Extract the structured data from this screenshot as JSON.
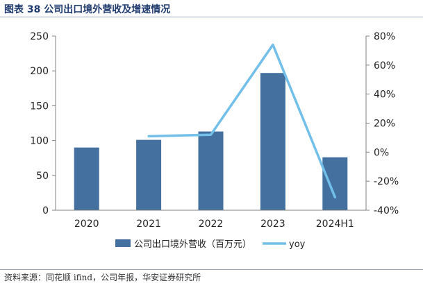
{
  "figure": {
    "title": "图表 38 公司出口境外营收及增速情况",
    "source": "资料来源：同花顺 ifind，公司年报，华安证券研究所"
  },
  "colors": {
    "bar": "#43709f",
    "line": "#72bfea",
    "axis": "#808080",
    "text": "#222222",
    "title": "#1f3a6e"
  },
  "chart_data": {
    "type": "bar",
    "categories": [
      "2020",
      "2021",
      "2022",
      "2023",
      "2024H1"
    ],
    "series": [
      {
        "name": "公司出口境外营收（百万元）",
        "type": "bar",
        "axis": "left",
        "values": [
          90,
          101,
          113,
          197,
          76
        ]
      },
      {
        "name": "yoy",
        "type": "line",
        "axis": "right",
        "values": [
          null,
          0.11,
          0.12,
          0.74,
          -0.31
        ]
      }
    ],
    "y_left": {
      "range": [
        0,
        250
      ],
      "ticks": [
        0,
        50,
        100,
        150,
        200,
        250
      ],
      "tick_labels": [
        "0",
        "50",
        "100",
        "150",
        "200",
        "250"
      ]
    },
    "y_right": {
      "range": [
        -0.4,
        0.8
      ],
      "ticks": [
        -0.4,
        -0.2,
        0,
        0.2,
        0.4,
        0.6,
        0.8
      ],
      "tick_labels": [
        "-40%",
        "-20%",
        "0%",
        "20%",
        "40%",
        "60%",
        "80%"
      ]
    },
    "grid": false,
    "legend": "bottom"
  }
}
